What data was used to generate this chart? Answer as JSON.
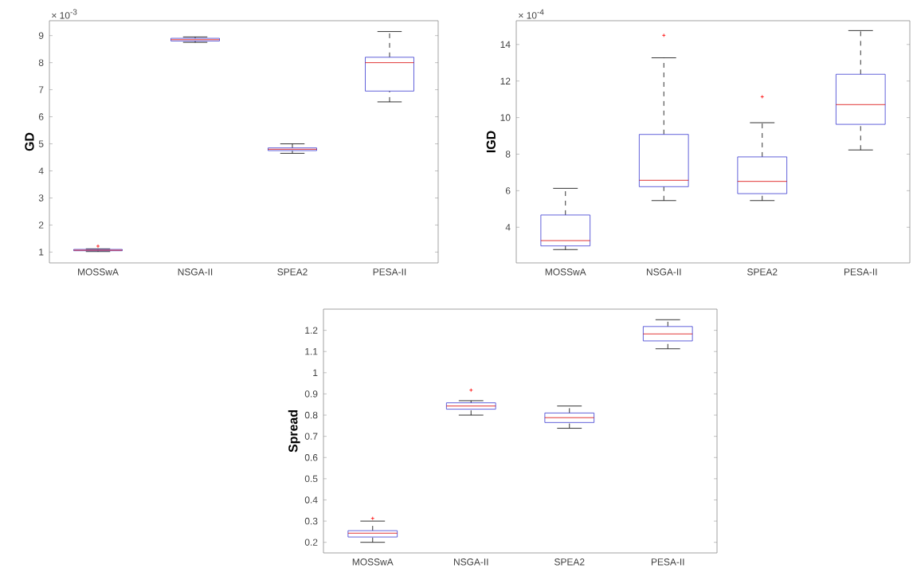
{
  "chart_data": [
    {
      "type": "box",
      "ylabel": "GD",
      "annotations": [
        "× 10$^{-3}$"
      ],
      "categories": [
        "MOSSwA",
        "NSGA-II",
        "SPEA2",
        "PESA-II"
      ],
      "ylim": [
        0.6,
        9.55
      ],
      "yticks": [
        1,
        2,
        3,
        4,
        5,
        6,
        7,
        8,
        9
      ],
      "marker": "cross",
      "line_style": "dashed",
      "series": [
        {
          "color": "#3a3ad0",
          "boxes": [
            {
              "low": 1.02,
              "q1": 1.05,
              "median": 1.07,
              "q3": 1.1,
              "high": 1.12,
              "outliers": [
                1.22
              ]
            },
            {
              "low": 8.75,
              "q1": 8.8,
              "median": 8.85,
              "q3": 8.9,
              "high": 8.95
            },
            {
              "low": 4.65,
              "q1": 4.75,
              "median": 4.8,
              "q3": 4.85,
              "high": 5.0
            },
            {
              "low": 6.55,
              "q1": 6.95,
              "median": 8.0,
              "q3": 8.2,
              "high": 9.15
            }
          ]
        }
      ]
    },
    {
      "type": "box",
      "ylabel": "IGD",
      "annotations": [
        "× 10$^{-4}$"
      ],
      "categories": [
        "MOSSwA",
        "NSGA-II",
        "SPEA2",
        "PESA-II"
      ],
      "ylim": [
        2.05,
        15.3
      ],
      "yticks": [
        4,
        6,
        8,
        10,
        12,
        14
      ],
      "marker": "cross",
      "line_style": "dashed",
      "series": [
        {
          "color": "#3a3ad0",
          "boxes": [
            {
              "low": 2.78,
              "q1": 2.98,
              "median": 3.27,
              "q3": 4.67,
              "high": 6.13
            },
            {
              "low": 5.46,
              "q1": 6.22,
              "median": 6.57,
              "q3": 9.08,
              "high": 13.27,
              "outliers": [
                14.5
              ]
            },
            {
              "low": 5.46,
              "q1": 5.84,
              "median": 6.51,
              "q3": 7.85,
              "high": 9.72,
              "outliers": [
                11.14
              ]
            },
            {
              "low": 8.23,
              "q1": 9.63,
              "median": 10.71,
              "q3": 12.37,
              "high": 14.76
            }
          ]
        }
      ]
    },
    {
      "type": "box",
      "ylabel": "Spread",
      "categories": [
        "MOSSwA",
        "NSGA-II",
        "SPEA2",
        "PESA-II"
      ],
      "ylim": [
        0.15,
        1.3
      ],
      "yticks": [
        0.2,
        0.3,
        0.4,
        0.5,
        0.6,
        0.7,
        0.8,
        0.9,
        1,
        1.1,
        1.2
      ],
      "marker": "cross",
      "line_style": "dashed",
      "series": [
        {
          "color": "#3a3ad0",
          "boxes": [
            {
              "low": 0.2,
              "q1": 0.225,
              "median": 0.243,
              "q3": 0.255,
              "high": 0.3,
              "outliers": [
                0.313
              ]
            },
            {
              "low": 0.8,
              "q1": 0.828,
              "median": 0.843,
              "q3": 0.858,
              "high": 0.868,
              "outliers": [
                0.918
              ]
            },
            {
              "low": 0.738,
              "q1": 0.765,
              "median": 0.788,
              "q3": 0.81,
              "high": 0.843
            },
            {
              "low": 1.113,
              "q1": 1.15,
              "median": 1.183,
              "q3": 1.218,
              "high": 1.25
            }
          ]
        }
      ]
    }
  ]
}
